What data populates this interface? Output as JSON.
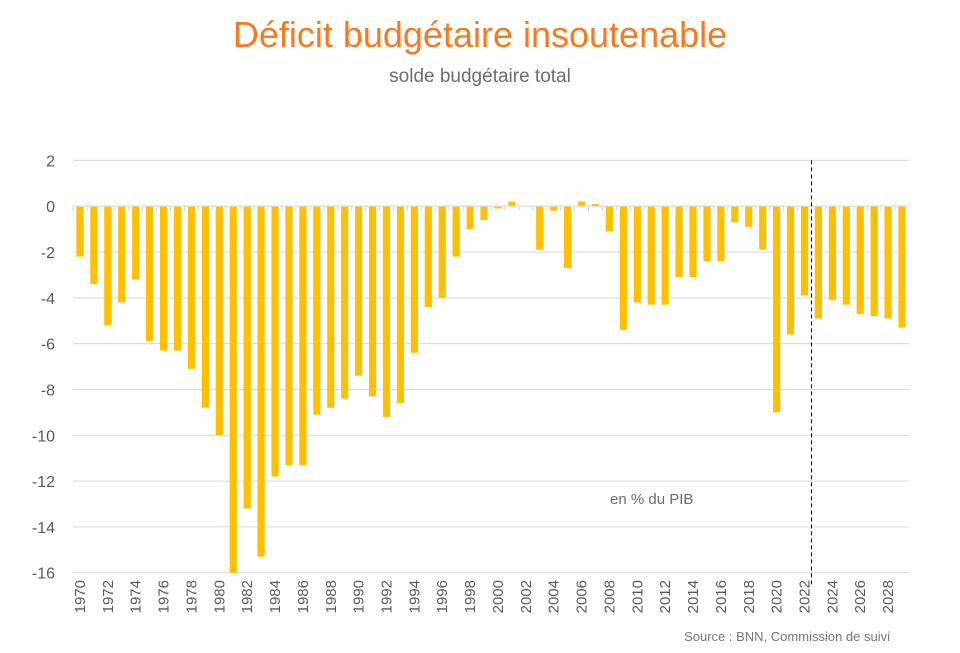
{
  "title": "Déficit budgétaire insoutenable",
  "subtitle": "solde budgétaire total",
  "source": "Source : BNN, Commission de suivi",
  "colors": {
    "bar": "#FFC000",
    "title": "#F47B20",
    "grid": "#d9d9d9",
    "divider": "#000000"
  },
  "chart_data": {
    "type": "bar",
    "title": "Déficit budgétaire insoutenable",
    "subtitle": "solde budgétaire total",
    "xlabel": "",
    "ylabel": "",
    "annotation": "en % du PIB",
    "ylim": [
      -16,
      2
    ],
    "yticks": [
      2,
      0,
      -2,
      -4,
      -6,
      -8,
      -10,
      -12,
      -14,
      -16
    ],
    "grid": true,
    "legend": "none",
    "projection_divider_between": [
      "2022",
      "2023"
    ],
    "categories": [
      "1970",
      "1971",
      "1972",
      "1973",
      "1974",
      "1975",
      "1976",
      "1977",
      "1978",
      "1979",
      "1980",
      "1981",
      "1982",
      "1983",
      "1984",
      "1985",
      "1986",
      "1987",
      "1988",
      "1989",
      "1990",
      "1991",
      "1992",
      "1993",
      "1994",
      "1995",
      "1996",
      "1997",
      "1998",
      "1999",
      "2000",
      "2001",
      "2002",
      "2003",
      "2004",
      "2005",
      "2006",
      "2007",
      "2008",
      "2009",
      "2010",
      "2011",
      "2012",
      "2013",
      "2014",
      "2015",
      "2016",
      "2017",
      "2018",
      "2019",
      "2020",
      "2021",
      "2022",
      "2023",
      "2024",
      "2025",
      "2026",
      "2027",
      "2028",
      "2029"
    ],
    "xtick_labels": [
      "1970",
      "1972",
      "1974",
      "1976",
      "1978",
      "1980",
      "1982",
      "1984",
      "1986",
      "1988",
      "1990",
      "1992",
      "1994",
      "1996",
      "1998",
      "2000",
      "2002",
      "2004",
      "2006",
      "2008",
      "2010",
      "2012",
      "2014",
      "2016",
      "2018",
      "2020",
      "2022",
      "2024",
      "2026",
      "2028"
    ],
    "values": [
      -2.2,
      -3.4,
      -5.2,
      -4.2,
      -3.2,
      -5.9,
      -6.3,
      -6.3,
      -7.1,
      -8.8,
      -10.0,
      -16.0,
      -13.2,
      -15.3,
      -11.8,
      -11.3,
      -11.3,
      -9.1,
      -8.8,
      -8.4,
      -7.4,
      -8.3,
      -9.2,
      -8.6,
      -6.4,
      -4.4,
      -4.0,
      -2.2,
      -1.0,
      -0.6,
      -0.1,
      0.2,
      0.0,
      -1.9,
      -0.2,
      -2.7,
      0.2,
      0.1,
      -1.1,
      -5.4,
      -4.2,
      -4.3,
      -4.3,
      -3.1,
      -3.1,
      -2.4,
      -2.4,
      -0.7,
      -0.9,
      -1.9,
      -9.0,
      -5.6,
      -3.9,
      -4.9,
      -4.1,
      -4.3,
      -4.7,
      -4.8,
      -4.9,
      -5.3
    ]
  }
}
